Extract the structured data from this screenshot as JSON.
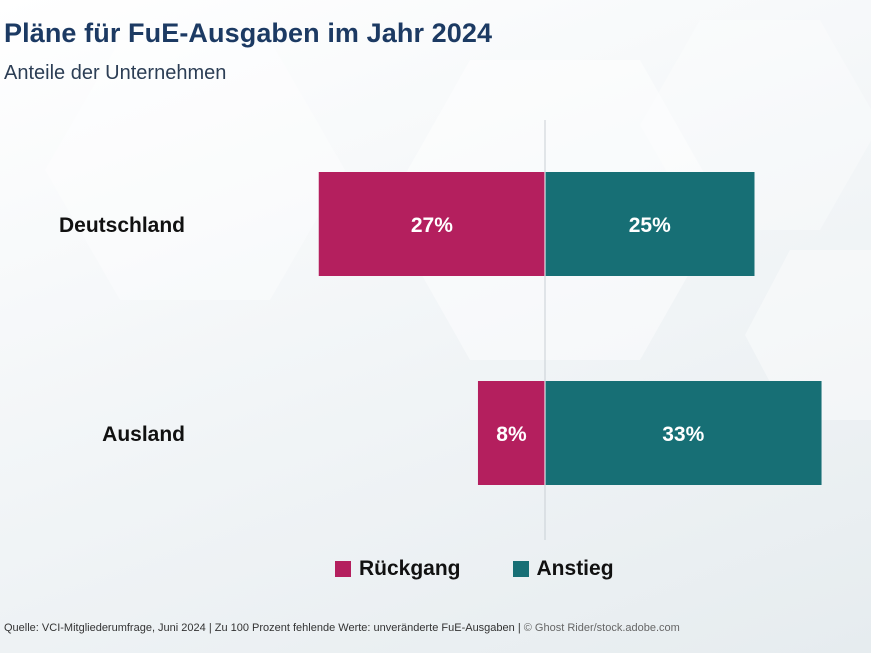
{
  "title": "Pläne für FuE-Ausgaben im Jahr 2024",
  "subtitle": "Anteile der Unternehmen",
  "source": {
    "text": "Quelle: VCI-Mitgliederumfrage, Juni 2024 | Zu 100 Prozent fehlende Werte: unveränderte FuE-Ausgaben |",
    "credit": "© Ghost Rider/stock.adobe.com"
  },
  "colors": {
    "rueckgang": "#b41f5e",
    "anstieg": "#176f75",
    "title": "#1c3a63"
  },
  "legend": [
    {
      "label": "Rückgang",
      "color": "#b41f5e"
    },
    {
      "label": "Anstieg",
      "color": "#176f75"
    }
  ],
  "chart_data": {
    "type": "bar",
    "orientation": "horizontal-diverging",
    "categories": [
      "Deutschland",
      "Ausland"
    ],
    "series": [
      {
        "name": "Rückgang",
        "values": [
          27,
          8
        ],
        "labels": [
          "27%",
          "8%"
        ],
        "color": "#b41f5e",
        "direction": "left"
      },
      {
        "name": "Anstieg",
        "values": [
          25,
          33
        ],
        "labels": [
          "25%",
          "33%"
        ],
        "color": "#176f75",
        "direction": "right"
      }
    ],
    "unit": "%",
    "legend_position": "bottom-center",
    "grid": false
  }
}
